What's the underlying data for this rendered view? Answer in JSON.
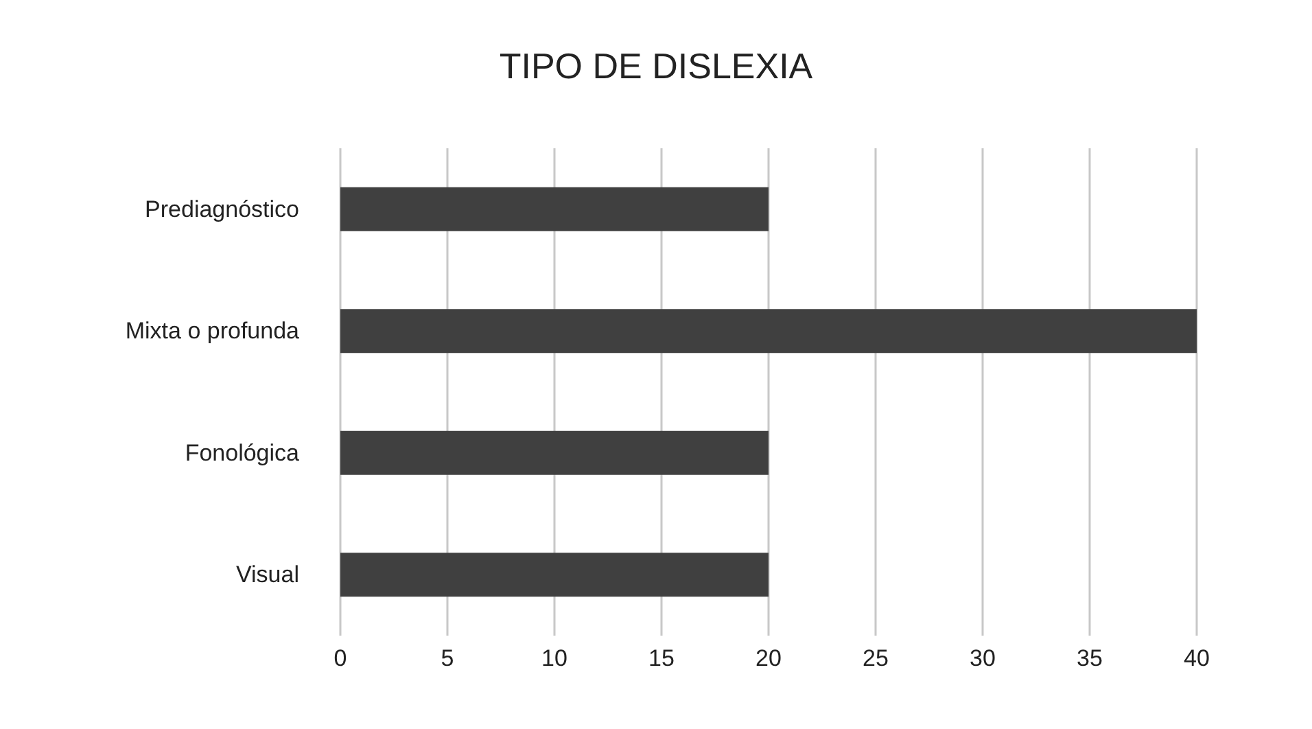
{
  "chart_data": {
    "type": "bar",
    "title": "TIPO DE DISLEXIA",
    "orientation": "horizontal",
    "categories": [
      "Prediagnóstico",
      "Mixta o profunda",
      "Fonológica",
      "Visual"
    ],
    "values": [
      20,
      40,
      20,
      20
    ],
    "color": "#404040",
    "xlim": [
      0,
      40
    ],
    "xticks": [
      0,
      5,
      10,
      15,
      20,
      25,
      30,
      35,
      40
    ],
    "grid": "x"
  }
}
